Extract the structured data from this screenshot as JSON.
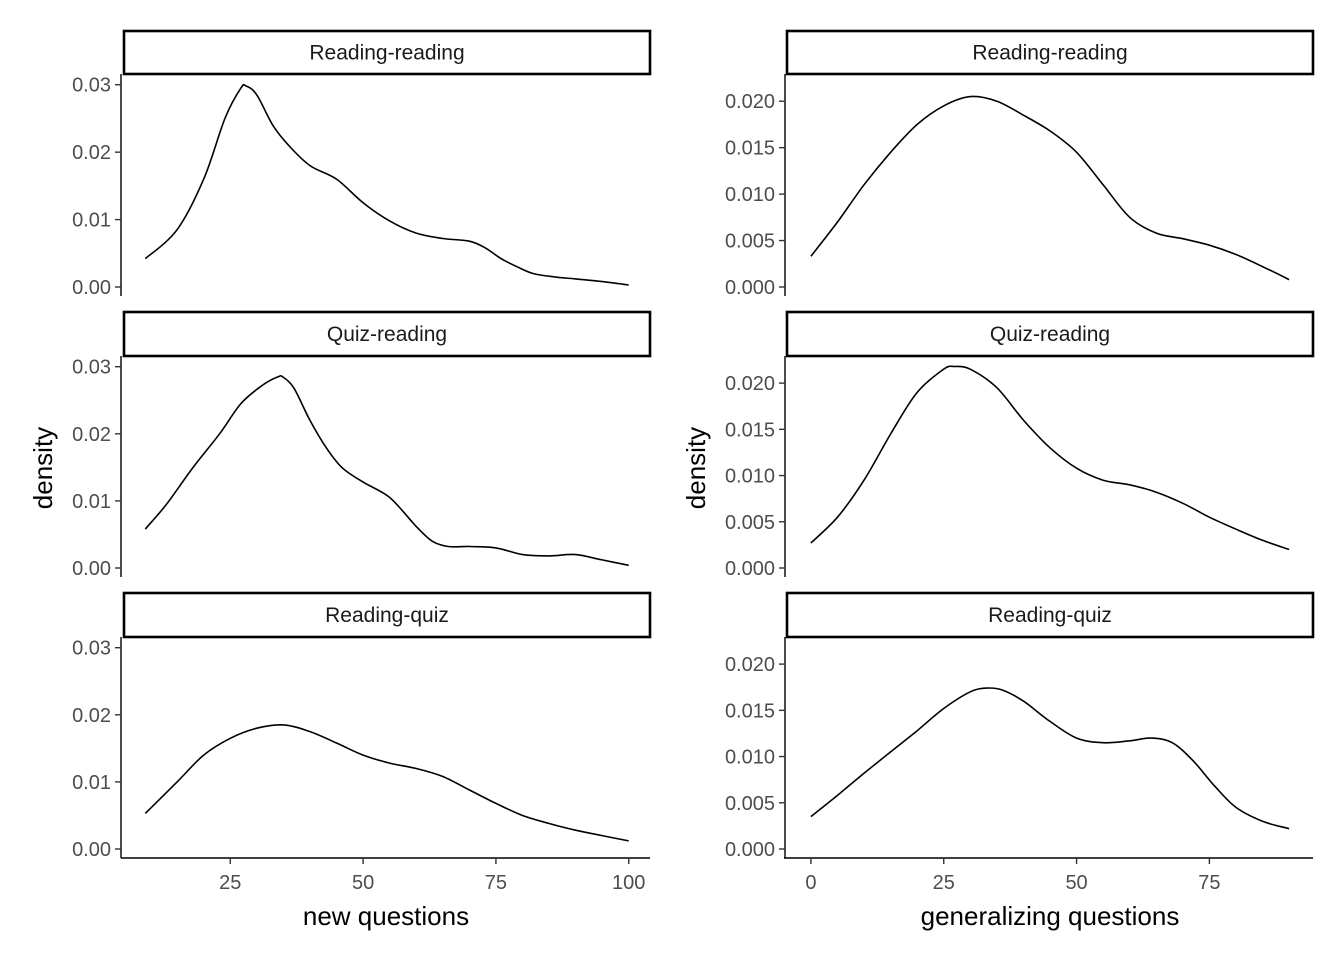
{
  "chart_data": [
    {
      "type": "line",
      "subtype": "faceted density",
      "xlabel": "new questions",
      "ylabel": "density",
      "xlim": [
        5,
        104
      ],
      "ylim": [
        0,
        0.031
      ],
      "x_ticks": [
        25,
        50,
        75,
        100
      ],
      "y_ticks": [
        0.0,
        0.01,
        0.02,
        0.03
      ],
      "y_tick_labels": [
        "0.00",
        "0.01",
        "0.02",
        "0.03"
      ],
      "grid": false,
      "facets": [
        {
          "strip": "Reading-reading",
          "x": [
            9,
            15,
            20,
            24,
            27,
            28,
            30,
            33,
            36,
            40,
            45,
            50,
            55,
            60,
            65,
            70,
            73,
            76,
            79,
            82,
            86,
            90,
            95,
            100
          ],
          "y": [
            0.0042,
            0.0085,
            0.016,
            0.025,
            0.0295,
            0.0298,
            0.0285,
            0.024,
            0.021,
            0.018,
            0.016,
            0.0125,
            0.0098,
            0.008,
            0.0072,
            0.0068,
            0.0058,
            0.0042,
            0.003,
            0.002,
            0.0015,
            0.0012,
            0.0008,
            0.0003
          ]
        },
        {
          "strip": "Quiz-reading",
          "x": [
            9,
            13,
            18,
            23,
            27,
            31,
            34,
            35,
            37,
            40,
            43,
            46,
            50,
            55,
            60,
            63,
            66,
            70,
            75,
            80,
            85,
            90,
            95,
            100
          ],
          "y": [
            0.0058,
            0.0095,
            0.015,
            0.02,
            0.0245,
            0.0272,
            0.0285,
            0.0284,
            0.0268,
            0.022,
            0.018,
            0.015,
            0.0128,
            0.0105,
            0.0062,
            0.004,
            0.0032,
            0.0032,
            0.003,
            0.002,
            0.0018,
            0.002,
            0.0012,
            0.0004
          ]
        },
        {
          "strip": "Reading-quiz",
          "x": [
            9,
            15,
            20,
            25,
            30,
            35,
            40,
            45,
            50,
            55,
            60,
            65,
            70,
            75,
            80,
            85,
            90,
            95,
            100
          ],
          "y": [
            0.0053,
            0.01,
            0.014,
            0.0165,
            0.018,
            0.0185,
            0.0175,
            0.0158,
            0.014,
            0.0128,
            0.012,
            0.0108,
            0.0088,
            0.0068,
            0.005,
            0.0038,
            0.0028,
            0.002,
            0.0012
          ]
        }
      ]
    },
    {
      "type": "line",
      "subtype": "faceted density",
      "xlabel": "generalizing questions",
      "ylabel": "density",
      "xlim": [
        -4.5,
        94.5
      ],
      "ylim": [
        0,
        0.0225
      ],
      "x_ticks": [
        0,
        25,
        50,
        75
      ],
      "y_ticks": [
        0.0,
        0.005,
        0.01,
        0.015,
        0.02
      ],
      "y_tick_labels": [
        "0.000",
        "0.005",
        "0.010",
        "0.015",
        "0.020"
      ],
      "grid": false,
      "facets": [
        {
          "strip": "Reading-reading",
          "x": [
            0,
            5,
            10,
            15,
            20,
            25,
            30,
            35,
            40,
            45,
            50,
            55,
            60,
            65,
            70,
            75,
            80,
            85,
            90
          ],
          "y": [
            0.0033,
            0.007,
            0.011,
            0.0145,
            0.0175,
            0.0195,
            0.0205,
            0.02,
            0.0185,
            0.0168,
            0.0145,
            0.011,
            0.0075,
            0.0058,
            0.0052,
            0.0045,
            0.0035,
            0.0022,
            0.0008
          ]
        },
        {
          "strip": "Quiz-reading",
          "x": [
            0,
            5,
            10,
            15,
            20,
            25,
            27,
            30,
            35,
            40,
            45,
            50,
            55,
            60,
            65,
            70,
            75,
            80,
            85,
            90
          ],
          "y": [
            0.0027,
            0.0055,
            0.0095,
            0.0145,
            0.019,
            0.0215,
            0.0218,
            0.0215,
            0.0195,
            0.016,
            0.013,
            0.0108,
            0.0095,
            0.009,
            0.0082,
            0.007,
            0.0055,
            0.0042,
            0.003,
            0.002
          ]
        },
        {
          "strip": "Reading-quiz",
          "x": [
            0,
            5,
            10,
            15,
            20,
            25,
            30,
            33,
            36,
            40,
            45,
            50,
            55,
            60,
            64,
            68,
            72,
            76,
            80,
            85,
            90
          ],
          "y": [
            0.0035,
            0.0058,
            0.0082,
            0.0105,
            0.0128,
            0.0152,
            0.017,
            0.0174,
            0.0172,
            0.016,
            0.0138,
            0.012,
            0.0115,
            0.0117,
            0.012,
            0.0115,
            0.0095,
            0.0068,
            0.0045,
            0.003,
            0.0022
          ]
        }
      ]
    }
  ]
}
